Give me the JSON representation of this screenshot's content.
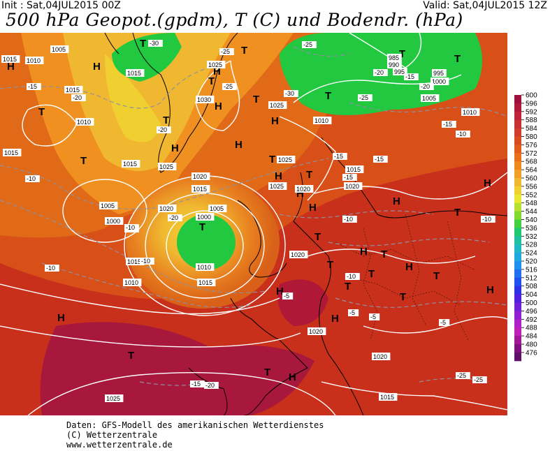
{
  "header": {
    "init": "Init : Sat,04JUL2015 00Z",
    "valid": "Valid: Sat,04JUL2015 12Z",
    "title": "500 hPa Geopot.(gpdm), T (C) und Bodendr. (hPa)"
  },
  "legend": {
    "values": [
      "600",
      "596",
      "592",
      "588",
      "584",
      "580",
      "576",
      "572",
      "568",
      "564",
      "560",
      "556",
      "552",
      "548",
      "544",
      "540",
      "536",
      "532",
      "528",
      "524",
      "520",
      "516",
      "512",
      "508",
      "504",
      "500",
      "496",
      "492",
      "488",
      "484",
      "480",
      "476"
    ],
    "colors": [
      "#a0103c",
      "#b01838",
      "#c02238",
      "#c83030",
      "#d03c28",
      "#d84c20",
      "#e05c18",
      "#e87018",
      "#f08820",
      "#f0a028",
      "#f0b830",
      "#f0d030",
      "#e8e830",
      "#b8e030",
      "#80d830",
      "#40d040",
      "#20c870",
      "#20c0a0",
      "#20b8c8",
      "#20a8e0",
      "#2090f0",
      "#2070f0",
      "#2050f0",
      "#3030e8",
      "#5020e0",
      "#7020d8",
      "#9020d0",
      "#b020c8",
      "#c020b8",
      "#a01898",
      "#801080",
      "#601068"
    ]
  },
  "map": {
    "pressure_labels": [
      "1015",
      "1010",
      "1005",
      "1015",
      "1015",
      "1025",
      "1030",
      "1025",
      "1015",
      "1010",
      "1015",
      "1025",
      "1020",
      "1015",
      "1005",
      "1000",
      "1005",
      "1000",
      "1010",
      "1015",
      "1010",
      "1020",
      "1015",
      "1025",
      "1020",
      "1010",
      "1015",
      "1020",
      "1025",
      "1020",
      "1020",
      "1020",
      "1015",
      "1025",
      "1000",
      "995",
      "985",
      "990",
      "995",
      "1005",
      "1010"
    ],
    "temp_labels": [
      "-30",
      "-25",
      "-25",
      "-30",
      "-25",
      "-20",
      "-15",
      "-20",
      "-15",
      "-10",
      "-20",
      "-25",
      "-20",
      "-15",
      "-15",
      "-15",
      "-15",
      "-10",
      "-10",
      "-10",
      "-10",
      "-10",
      "-10",
      "-5",
      "-5",
      "-5",
      "-5",
      "-10",
      "-15",
      "-20",
      "-25",
      "-25",
      "-20",
      "-15"
    ],
    "high_symbol": "H",
    "low_symbol": "T"
  },
  "footer": {
    "line1": "Daten: GFS-Modell des amerikanischen Wetterdienstes",
    "line2": "(C) Wetterzentrale",
    "line3": "www.wetterzentrale.de"
  }
}
